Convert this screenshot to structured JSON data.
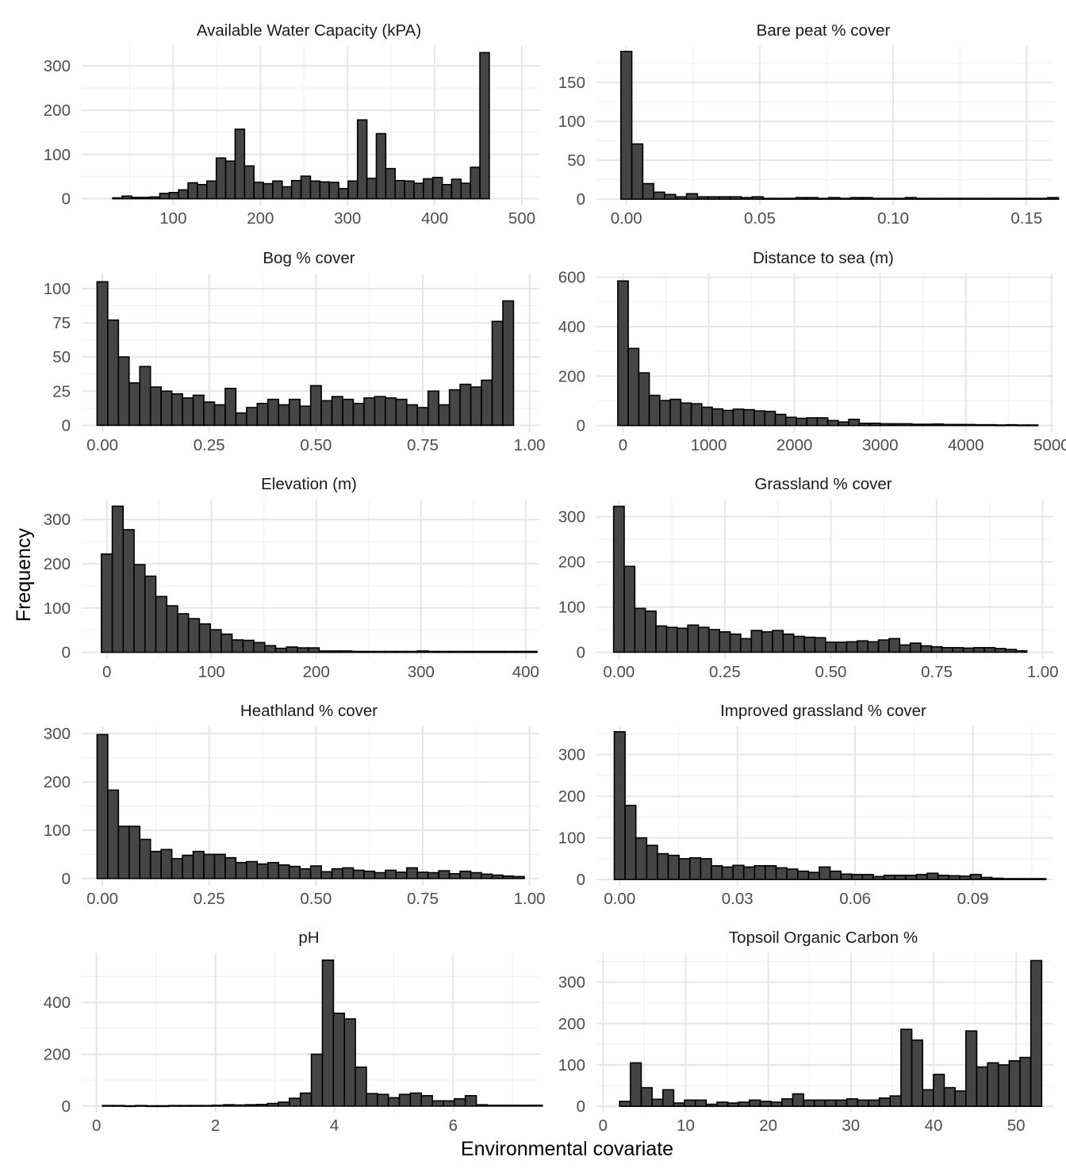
{
  "figure": {
    "ylabel": "Frequency",
    "xlabel": "Environmental covariate"
  },
  "chart_data": [
    {
      "type": "bar",
      "title": "Available Water Capacity (kPA)",
      "bin_width": 10.8,
      "x_start": 30.6,
      "values": [
        2,
        6,
        3,
        3,
        4,
        12,
        14,
        20,
        36,
        32,
        40,
        92,
        85,
        157,
        74,
        37,
        34,
        40,
        27,
        41,
        51,
        40,
        38,
        37,
        23,
        40,
        178,
        46,
        147,
        68,
        41,
        40,
        35,
        45,
        48,
        32,
        44,
        35,
        71,
        330
      ],
      "xlim": [
        -5,
        520
      ],
      "ylim": [
        -15,
        345
      ],
      "xticks": [
        100,
        200,
        300,
        400,
        500
      ],
      "xtick_labels": [
        "100",
        "200",
        "300",
        "400",
        "500"
      ],
      "yticks": [
        0,
        100,
        200,
        300
      ],
      "ytick_labels": [
        "0",
        "100",
        "200",
        "300"
      ]
    },
    {
      "type": "bar",
      "title": "Bare peat % cover",
      "bin_width": 0.0041,
      "x_start": -0.00205,
      "values": [
        190,
        71,
        20,
        9,
        6,
        3,
        7,
        3,
        3,
        3,
        3,
        2,
        3,
        1,
        1,
        1,
        2,
        2,
        1,
        2,
        1,
        2,
        2,
        1,
        1,
        1,
        2,
        1,
        1,
        1,
        1,
        1,
        1,
        1,
        1,
        1,
        1,
        1,
        1,
        2
      ],
      "xlim": [
        -0.0112,
        0.16
      ],
      "ylim": [
        -8,
        197
      ],
      "xticks": [
        0,
        0.05,
        0.1,
        0.15
      ],
      "xtick_labels": [
        "0.00",
        "0.05",
        "0.10",
        "0.15"
      ],
      "yticks": [
        0,
        50,
        100,
        150
      ],
      "ytick_labels": [
        "0",
        "50",
        "100",
        "150"
      ]
    },
    {
      "type": "bar",
      "title": "Bog % cover",
      "bin_width": 0.025,
      "x_start": -0.0125,
      "values": [
        105,
        77,
        50,
        31,
        43,
        28,
        25,
        23,
        20,
        22,
        17,
        15,
        27,
        9,
        13,
        16,
        19,
        15,
        19,
        14,
        29,
        18,
        21,
        19,
        16,
        20,
        21,
        20,
        19,
        15,
        13,
        25,
        15,
        26,
        30,
        28,
        33,
        76,
        91
      ],
      "xlim": [
        -0.0485,
        1.023
      ],
      "ylim": [
        -5,
        111
      ],
      "xticks": [
        0,
        0.25,
        0.5,
        0.75,
        1
      ],
      "xtick_labels": [
        "0.00",
        "0.25",
        "0.50",
        "0.75",
        "1.00"
      ],
      "yticks": [
        0,
        25,
        50,
        75,
        100
      ],
      "ytick_labels": [
        "0",
        "25",
        "50",
        "75",
        "100"
      ]
    },
    {
      "type": "bar",
      "title": "Distance to sea (m)",
      "bin_width": 122.5,
      "x_start": -61.25,
      "values": [
        585,
        312,
        213,
        122,
        101,
        106,
        91,
        88,
        74,
        67,
        61,
        66,
        64,
        59,
        57,
        45,
        33,
        29,
        31,
        31,
        20,
        14,
        25,
        9,
        9,
        7,
        7,
        7,
        5,
        5,
        6,
        4,
        4,
        4,
        3,
        3,
        2,
        3,
        2,
        2
      ],
      "xlim": [
        -310,
        5020
      ],
      "ylim": [
        -27,
        615
      ],
      "xticks": [
        0,
        1000,
        2000,
        3000,
        4000,
        5000
      ],
      "xtick_labels": [
        "0",
        "1000",
        "2000",
        "3000",
        "4000",
        "5000"
      ],
      "yticks": [
        0,
        200,
        400,
        600
      ],
      "ytick_labels": [
        "0",
        "200",
        "400",
        "600"
      ]
    },
    {
      "type": "bar",
      "title": "Elevation (m)",
      "bin_width": 10.4,
      "x_start": -5.2,
      "values": [
        222,
        330,
        277,
        198,
        172,
        126,
        105,
        87,
        76,
        64,
        51,
        41,
        28,
        27,
        22,
        15,
        9,
        12,
        10,
        10,
        3,
        3,
        3,
        2,
        2,
        2,
        2,
        2,
        2,
        3,
        2,
        2,
        2,
        2,
        2,
        2,
        2,
        2,
        2,
        2
      ],
      "xlim": [
        -24,
        413
      ],
      "ylim": [
        -15,
        345
      ],
      "xticks": [
        0,
        100,
        200,
        300,
        400
      ],
      "xtick_labels": [
        "0",
        "100",
        "200",
        "300",
        "400"
      ],
      "yticks": [
        0,
        100,
        200,
        300
      ],
      "ytick_labels": [
        "0",
        "100",
        "200",
        "300"
      ]
    },
    {
      "type": "bar",
      "title": "Grassland % cover",
      "bin_width": 0.025,
      "x_start": -0.0125,
      "values": [
        323,
        190,
        97,
        91,
        58,
        55,
        53,
        60,
        55,
        50,
        45,
        40,
        30,
        48,
        45,
        48,
        40,
        35,
        33,
        32,
        22,
        22,
        23,
        25,
        23,
        27,
        30,
        16,
        20,
        14,
        12,
        10,
        10,
        9,
        10,
        10,
        8,
        6,
        3
      ],
      "xlim": [
        -0.053,
        1.025
      ],
      "ylim": [
        -15,
        338
      ],
      "xticks": [
        0,
        0.25,
        0.5,
        0.75,
        1
      ],
      "xtick_labels": [
        "0.00",
        "0.25",
        "0.50",
        "0.75",
        "1.00"
      ],
      "yticks": [
        0,
        100,
        200,
        300
      ],
      "ytick_labels": [
        "0",
        "100",
        "200",
        "300"
      ]
    },
    {
      "type": "bar",
      "title": "Heathland % cover",
      "bin_width": 0.025,
      "x_start": -0.0125,
      "values": [
        298,
        183,
        108,
        108,
        81,
        56,
        60,
        41,
        48,
        56,
        50,
        50,
        43,
        33,
        35,
        30,
        33,
        28,
        25,
        20,
        26,
        14,
        20,
        22,
        17,
        15,
        12,
        17,
        13,
        22,
        13,
        12,
        16,
        10,
        15,
        12,
        9,
        7,
        5,
        4
      ],
      "xlim": [
        -0.0485,
        1.023
      ],
      "ylim": [
        -15,
        315
      ],
      "xticks": [
        0,
        0.25,
        0.5,
        0.75,
        1
      ],
      "xtick_labels": [
        "0.00",
        "0.25",
        "0.50",
        "0.75",
        "1.00"
      ],
      "yticks": [
        0,
        100,
        200,
        300
      ],
      "ytick_labels": [
        "0",
        "100",
        "200",
        "300"
      ]
    },
    {
      "type": "bar",
      "title": "Improved grassland % cover",
      "bin_width": 0.00275,
      "x_start": -0.001375,
      "values": [
        355,
        178,
        100,
        82,
        62,
        58,
        50,
        52,
        50,
        33,
        30,
        34,
        30,
        33,
        33,
        28,
        25,
        20,
        17,
        30,
        20,
        13,
        12,
        12,
        7,
        10,
        10,
        10,
        12,
        15,
        10,
        9,
        8,
        12,
        5,
        3,
        2,
        2,
        2,
        2
      ],
      "xlim": [
        -0.00592,
        0.1105
      ],
      "ylim": [
        -15,
        368
      ],
      "xticks": [
        0,
        0.03,
        0.06,
        0.09
      ],
      "xtick_labels": [
        "0.00",
        "0.03",
        "0.06",
        "0.09"
      ],
      "yticks": [
        0,
        100,
        200,
        300
      ],
      "ytick_labels": [
        "0",
        "100",
        "200",
        "300"
      ]
    },
    {
      "type": "bar",
      "title": "pH",
      "bin_width": 0.185,
      "x_start": 0.1,
      "values": [
        2,
        2,
        1,
        2,
        1,
        1,
        2,
        2,
        2,
        2,
        3,
        5,
        4,
        5,
        6,
        10,
        15,
        30,
        50,
        200,
        563,
        358,
        336,
        150,
        48,
        45,
        32,
        45,
        50,
        40,
        20,
        20,
        28,
        40,
        5,
        3,
        3,
        3,
        3,
        3
      ],
      "xlim": [
        -0.25,
        7.45
      ],
      "ylim": [
        -25,
        590
      ],
      "xticks": [
        0,
        2,
        4,
        6
      ],
      "xtick_labels": [
        "0",
        "2",
        "4",
        "6"
      ],
      "yticks": [
        0,
        200,
        400
      ],
      "ytick_labels": [
        "0",
        "200",
        "400"
      ]
    },
    {
      "type": "bar",
      "title": "Topsoil Organic Carbon %",
      "bin_width": 1.31,
      "x_start": 2.0,
      "values": [
        12,
        105,
        45,
        17,
        40,
        8,
        15,
        15,
        5,
        10,
        8,
        10,
        15,
        12,
        10,
        18,
        30,
        15,
        15,
        15,
        15,
        18,
        15,
        15,
        20,
        25,
        186,
        160,
        40,
        77,
        45,
        37,
        182,
        95,
        105,
        100,
        110,
        118,
        352
      ],
      "xlim": [
        -0.8,
        54.5
      ],
      "ylim": [
        -15,
        370
      ],
      "xticks": [
        0,
        10,
        20,
        30,
        40,
        50
      ],
      "xtick_labels": [
        "0",
        "10",
        "20",
        "30",
        "40",
        "50"
      ],
      "yticks": [
        0,
        100,
        200,
        300
      ],
      "ytick_labels": [
        "0",
        "100",
        "200",
        "300"
      ]
    }
  ]
}
